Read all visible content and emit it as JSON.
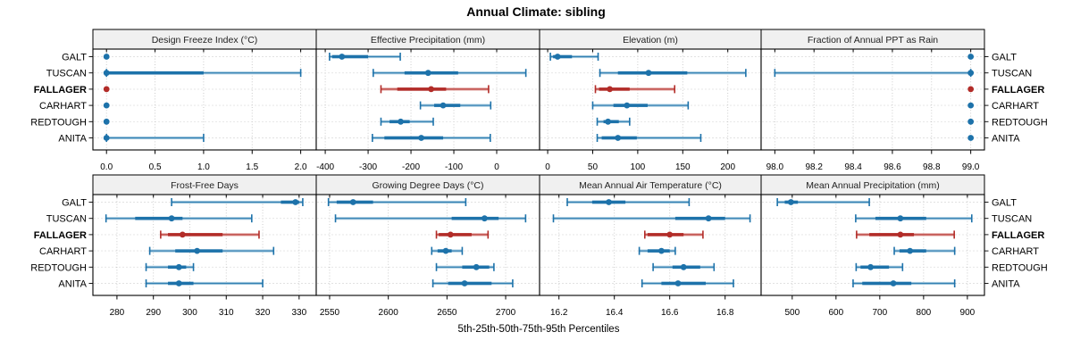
{
  "title": "Annual Climate: sibling",
  "axis_title": "5th-25th-50th-75th-95th Percentiles",
  "percentile_labels": [
    "5th",
    "25th",
    "50th",
    "75th",
    "95th"
  ],
  "sites": [
    "GALT",
    "TUSCAN",
    "FALLAGER",
    "CARHART",
    "REDTOUGH",
    "ANITA"
  ],
  "highlight_site": "FALLAGER",
  "colors": {
    "point_dark_blue": "#1D72AA",
    "point_light_blue": "#A9CCE0",
    "highlight_dark_red": "#B22C28",
    "highlight_light_red": "#E2A39F",
    "strip_fill": "#F0F0F0",
    "grid": "#C6C6C6",
    "border": "#000000"
  },
  "chart_data": [
    {
      "type": "dotplot",
      "title": "Design Freeze Index (°C)",
      "xlim": [
        -0.14,
        2.16
      ],
      "ticks": [
        0,
        0.5,
        1,
        1.5,
        2
      ],
      "tick_labels": [
        "0.0",
        "0.5",
        "1.0",
        "1.5",
        "2.0"
      ],
      "series": [
        {
          "site": "GALT",
          "p5": 0,
          "p25": 0,
          "p50": 0,
          "p75": 0,
          "p95": 0
        },
        {
          "site": "TUSCAN",
          "p5": 0,
          "p25": 0,
          "p50": 0,
          "p75": 1.0,
          "p95": 2.0
        },
        {
          "site": "FALLAGER",
          "p5": 0,
          "p25": 0,
          "p50": 0,
          "p75": 0,
          "p95": 0
        },
        {
          "site": "CARHART",
          "p5": 0,
          "p25": 0,
          "p50": 0,
          "p75": 0,
          "p95": 0
        },
        {
          "site": "REDTOUGH",
          "p5": 0,
          "p25": 0,
          "p50": 0,
          "p75": 0,
          "p95": 0
        },
        {
          "site": "ANITA",
          "p5": 0,
          "p25": 0,
          "p50": 0,
          "p75": 0,
          "p95": 1.0
        }
      ]
    },
    {
      "type": "dotplot",
      "title": "Effective Precipitation (mm)",
      "xlim": [
        -421,
        100
      ],
      "ticks": [
        -400,
        -300,
        -200,
        -100,
        0
      ],
      "tick_labels": [
        "-400",
        "-300",
        "-200",
        "-100",
        "0"
      ],
      "series": [
        {
          "site": "GALT",
          "p5": -390,
          "p25": -384,
          "p50": -361,
          "p75": -300,
          "p95": -225
        },
        {
          "site": "TUSCAN",
          "p5": -288,
          "p25": -215,
          "p50": -160,
          "p75": -90,
          "p95": 68
        },
        {
          "site": "FALLAGER",
          "p5": -270,
          "p25": -232,
          "p50": -153,
          "p75": -118,
          "p95": -19
        },
        {
          "site": "CARHART",
          "p5": -178,
          "p25": -146,
          "p50": -125,
          "p75": -85,
          "p95": -14
        },
        {
          "site": "REDTOUGH",
          "p5": -270,
          "p25": -250,
          "p50": -224,
          "p75": -203,
          "p95": -148
        },
        {
          "site": "ANITA",
          "p5": -290,
          "p25": -262,
          "p50": -176,
          "p75": -125,
          "p95": -15
        }
      ]
    },
    {
      "type": "dotplot",
      "title": "Elevation (m)",
      "xlim": [
        -9,
        237
      ],
      "ticks": [
        0,
        50,
        100,
        150,
        200
      ],
      "tick_labels": [
        "0",
        "50",
        "100",
        "150",
        "200"
      ],
      "series": [
        {
          "site": "GALT",
          "p5": 3,
          "p25": 6,
          "p50": 11,
          "p75": 27,
          "p95": 56
        },
        {
          "site": "TUSCAN",
          "p5": 58,
          "p25": 78,
          "p50": 112,
          "p75": 155,
          "p95": 220
        },
        {
          "site": "FALLAGER",
          "p5": 53,
          "p25": 57,
          "p50": 69,
          "p75": 91,
          "p95": 141
        },
        {
          "site": "CARHART",
          "p5": 50,
          "p25": 73,
          "p50": 88,
          "p75": 111,
          "p95": 156
        },
        {
          "site": "REDTOUGH",
          "p5": 55,
          "p25": 62,
          "p50": 67,
          "p75": 79,
          "p95": 91
        },
        {
          "site": "ANITA",
          "p5": 55,
          "p25": 60,
          "p50": 78,
          "p75": 99,
          "p95": 170
        }
      ]
    },
    {
      "type": "dotplot",
      "title": "Fraction of Annual PPT as Rain",
      "xlim": [
        97.93,
        99.07
      ],
      "ticks": [
        98.0,
        98.2,
        98.4,
        98.6,
        98.8,
        99.0
      ],
      "tick_labels": [
        "98.0",
        "98.2",
        "98.4",
        "98.6",
        "98.8",
        "99.0"
      ],
      "series": [
        {
          "site": "GALT",
          "p5": 99.0,
          "p25": 99.0,
          "p50": 99.0,
          "p75": 99.0,
          "p95": 99.0
        },
        {
          "site": "TUSCAN",
          "p5": 98.0,
          "p25": 99.0,
          "p50": 99.0,
          "p75": 99.0,
          "p95": 99.0
        },
        {
          "site": "FALLAGER",
          "p5": 99.0,
          "p25": 99.0,
          "p50": 99.0,
          "p75": 99.0,
          "p95": 99.0
        },
        {
          "site": "CARHART",
          "p5": 99.0,
          "p25": 99.0,
          "p50": 99.0,
          "p75": 99.0,
          "p95": 99.0
        },
        {
          "site": "REDTOUGH",
          "p5": 99.0,
          "p25": 99.0,
          "p50": 99.0,
          "p75": 99.0,
          "p95": 99.0
        },
        {
          "site": "ANITA",
          "p5": 99.0,
          "p25": 99.0,
          "p50": 99.0,
          "p75": 99.0,
          "p95": 99.0
        }
      ]
    },
    {
      "type": "dotplot",
      "title": "Frost-Free Days",
      "xlim": [
        273.4,
        334.7
      ],
      "ticks": [
        280,
        290,
        300,
        310,
        320,
        330
      ],
      "tick_labels": [
        "280",
        "290",
        "300",
        "310",
        "320",
        "330"
      ],
      "series": [
        {
          "site": "GALT",
          "p5": 295,
          "p25": 325,
          "p50": 329,
          "p75": 330,
          "p95": 331
        },
        {
          "site": "TUSCAN",
          "p5": 277,
          "p25": 285,
          "p50": 295,
          "p75": 298,
          "p95": 317
        },
        {
          "site": "FALLAGER",
          "p5": 292,
          "p25": 294,
          "p50": 298,
          "p75": 309,
          "p95": 319
        },
        {
          "site": "CARHART",
          "p5": 289,
          "p25": 296,
          "p50": 302,
          "p75": 309,
          "p95": 323
        },
        {
          "site": "REDTOUGH",
          "p5": 288,
          "p25": 294,
          "p50": 297,
          "p75": 299,
          "p95": 301
        },
        {
          "site": "ANITA",
          "p5": 288,
          "p25": 294,
          "p50": 297,
          "p75": 301,
          "p95": 320
        }
      ]
    },
    {
      "type": "dotplot",
      "title": "Growing Degree Days (°C)",
      "xlim": [
        2538.6,
        2728.9
      ],
      "ticks": [
        2550,
        2600,
        2650,
        2700
      ],
      "tick_labels": [
        "2550",
        "2600",
        "2650",
        "2700"
      ],
      "series": [
        {
          "site": "GALT",
          "p5": 2549,
          "p25": 2556,
          "p50": 2570,
          "p75": 2587,
          "p95": 2666
        },
        {
          "site": "TUSCAN",
          "p5": 2555,
          "p25": 2654,
          "p50": 2682,
          "p75": 2694,
          "p95": 2717
        },
        {
          "site": "FALLAGER",
          "p5": 2641,
          "p25": 2643,
          "p50": 2653,
          "p75": 2671,
          "p95": 2685
        },
        {
          "site": "CARHART",
          "p5": 2637,
          "p25": 2642,
          "p50": 2649,
          "p75": 2654,
          "p95": 2663
        },
        {
          "site": "REDTOUGH",
          "p5": 2641,
          "p25": 2663,
          "p50": 2675,
          "p75": 2686,
          "p95": 2690
        },
        {
          "site": "ANITA",
          "p5": 2638,
          "p25": 2651,
          "p50": 2665,
          "p75": 2688,
          "p95": 2706
        }
      ]
    },
    {
      "type": "dotplot",
      "title": "Mean Annual Air Temperature (°C)",
      "xlim": [
        16.13,
        16.93
      ],
      "ticks": [
        16.2,
        16.4,
        16.6,
        16.8
      ],
      "tick_labels": [
        "16.2",
        "16.4",
        "16.6",
        "16.8"
      ],
      "series": [
        {
          "site": "GALT",
          "p5": 16.23,
          "p25": 16.32,
          "p50": 16.38,
          "p75": 16.44,
          "p95": 16.67
        },
        {
          "site": "TUSCAN",
          "p5": 16.18,
          "p25": 16.62,
          "p50": 16.74,
          "p75": 16.8,
          "p95": 16.89
        },
        {
          "site": "FALLAGER",
          "p5": 16.51,
          "p25": 16.52,
          "p50": 16.6,
          "p75": 16.65,
          "p95": 16.72
        },
        {
          "site": "CARHART",
          "p5": 16.49,
          "p25": 16.52,
          "p50": 16.57,
          "p75": 16.6,
          "p95": 16.62
        },
        {
          "site": "REDTOUGH",
          "p5": 16.54,
          "p25": 16.61,
          "p50": 16.65,
          "p75": 16.71,
          "p95": 16.76
        },
        {
          "site": "ANITA",
          "p5": 16.5,
          "p25": 16.57,
          "p50": 16.63,
          "p75": 16.73,
          "p95": 16.83
        }
      ]
    },
    {
      "type": "dotplot",
      "title": "Mean Annual Precipitation (mm)",
      "xlim": [
        429,
        939
      ],
      "ticks": [
        500,
        600,
        700,
        800,
        900
      ],
      "tick_labels": [
        "500",
        "600",
        "700",
        "800",
        "900"
      ],
      "series": [
        {
          "site": "GALT",
          "p5": 466,
          "p25": 483,
          "p50": 497,
          "p75": 513,
          "p95": 676
        },
        {
          "site": "TUSCAN",
          "p5": 645,
          "p25": 690,
          "p50": 747,
          "p75": 806,
          "p95": 910
        },
        {
          "site": "FALLAGER",
          "p5": 647,
          "p25": 676,
          "p50": 747,
          "p75": 778,
          "p95": 870
        },
        {
          "site": "CARHART",
          "p5": 733,
          "p25": 745,
          "p50": 769,
          "p75": 806,
          "p95": 871
        },
        {
          "site": "REDTOUGH",
          "p5": 646,
          "p25": 656,
          "p50": 679,
          "p75": 721,
          "p95": 752
        },
        {
          "site": "ANITA",
          "p5": 639,
          "p25": 660,
          "p50": 731,
          "p75": 772,
          "p95": 871
        }
      ]
    }
  ]
}
